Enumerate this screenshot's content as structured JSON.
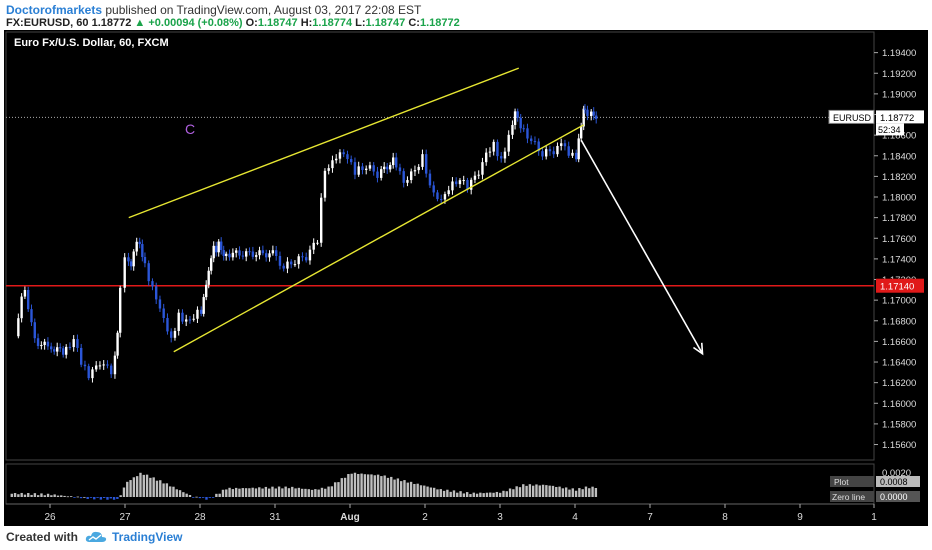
{
  "header": {
    "author": "Doctorofmarkets",
    "published": "published on TradingView.com, August 03, 2017 22:08 EST",
    "symbol": "FX:EURUSD, 60",
    "last": "1.18772",
    "change_arrow": "▲",
    "change": "+0.00094 (+0.08%)",
    "o_label": "O:",
    "o": "1.18747",
    "h_label": "H:",
    "h": "1.18774",
    "l_label": "L:",
    "l": "1.18747",
    "c_label": "C:",
    "c": "1.18772"
  },
  "footer": {
    "created_with": "Created with",
    "brand": "TradingView",
    "logo_icon": "tradingview-cloud-icon"
  },
  "chart_data": {
    "type": "candlestick",
    "title": "Euro Fx/U.S. Dollar, 60, FXCM",
    "y_range": [
      1.1545,
      1.196
    ],
    "y_ticks": [
      "1.19400",
      "1.19200",
      "1.19000",
      "1.18800",
      "1.18600",
      "1.18400",
      "1.18200",
      "1.18000",
      "1.17800",
      "1.17600",
      "1.17400",
      "1.17200",
      "1.17000",
      "1.16800",
      "1.16600",
      "1.16400",
      "1.16200",
      "1.16000",
      "1.15800",
      "1.15600"
    ],
    "x_tick_labels": [
      "26",
      "27",
      "28",
      "31",
      "Aug",
      "2",
      "3",
      "4",
      "7",
      "8",
      "9",
      "1"
    ],
    "price_label": {
      "symbol": "EURUSD",
      "value": "1.18772",
      "countdown": "52:34"
    },
    "horizontal_line": {
      "value": 1.1714,
      "label": "1.17140",
      "color": "#e01919"
    },
    "wave_label": "C",
    "up_color": "#ffffff",
    "down_color": "#2b56d8",
    "channel_color": "#e6e632",
    "arrow_color": "#ffffff",
    "channel": {
      "upper": {
        "start": {
          "x": 27.05,
          "y": 1.178
        },
        "end": {
          "x": 3.25,
          "y": 1.1925
        }
      },
      "lower": {
        "start": {
          "x": 27.65,
          "y": 1.165
        },
        "end": {
          "x": 4.35,
          "y": 1.187
        }
      }
    },
    "arrow": {
      "start": {
        "x": 4.25,
        "y": 1.1855
      },
      "end": {
        "x": 7.7,
        "y": 1.1648
      }
    },
    "price_path": [
      [
        25.5,
        1.1665
      ],
      [
        25.6,
        1.17
      ],
      [
        25.65,
        1.1712
      ],
      [
        25.8,
        1.166
      ],
      [
        26.0,
        1.1655
      ],
      [
        26.2,
        1.165
      ],
      [
        26.35,
        1.1662
      ],
      [
        26.45,
        1.164
      ],
      [
        26.55,
        1.1625
      ],
      [
        26.7,
        1.164
      ],
      [
        26.85,
        1.163
      ],
      [
        26.92,
        1.1665
      ],
      [
        26.98,
        1.1715
      ],
      [
        27.03,
        1.1745
      ],
      [
        27.1,
        1.1735
      ],
      [
        27.18,
        1.176
      ],
      [
        27.25,
        1.1745
      ],
      [
        27.35,
        1.172
      ],
      [
        27.45,
        1.17
      ],
      [
        27.55,
        1.168
      ],
      [
        27.65,
        1.166
      ],
      [
        27.75,
        1.1685
      ],
      [
        27.9,
        1.1678
      ],
      [
        28.0,
        1.1692
      ],
      [
        28.1,
        1.1688
      ],
      [
        28.2,
        1.1702
      ],
      [
        28.3,
        1.1712
      ],
      [
        28.4,
        1.1725
      ],
      [
        28.5,
        1.1738
      ],
      [
        28.6,
        1.1752
      ],
      [
        28.7,
        1.1748
      ],
      [
        28.8,
        1.176
      ],
      [
        28.9,
        1.1752
      ],
      [
        29.0,
        1.1745
      ],
      [
        31.0,
        1.1745
      ],
      [
        31.15,
        1.1732
      ],
      [
        31.3,
        1.1738
      ],
      [
        31.45,
        1.1742
      ],
      [
        31.6,
        1.1758
      ],
      [
        31.65,
        1.18
      ],
      [
        31.7,
        1.1828
      ],
      [
        31.8,
        1.1835
      ],
      [
        31.9,
        1.1845
      ],
      [
        32.0,
        1.184
      ],
      [
        32.1,
        1.1825
      ],
      [
        32.25,
        1.183
      ],
      [
        32.4,
        1.1822
      ],
      [
        32.6,
        1.1835
      ],
      [
        32.75,
        1.1815
      ],
      [
        32.9,
        1.1825
      ],
      [
        33.0,
        1.184
      ],
      [
        33.1,
        1.1812
      ],
      [
        33.25,
        1.1795
      ],
      [
        33.35,
        1.181
      ],
      [
        33.5,
        1.1818
      ],
      [
        33.6,
        1.1808
      ],
      [
        33.75,
        1.1825
      ],
      [
        33.85,
        1.184
      ],
      [
        33.95,
        1.185
      ],
      [
        34.05,
        1.1835
      ],
      [
        34.15,
        1.186
      ],
      [
        34.22,
        1.1885
      ],
      [
        34.3,
        1.187
      ],
      [
        34.45,
        1.1855
      ],
      [
        34.6,
        1.1842
      ],
      [
        34.75,
        1.1845
      ],
      [
        34.9,
        1.1852
      ],
      [
        34.95,
        1.184
      ],
      [
        35.0,
        1.1845
      ],
      [
        35.1,
        1.184
      ],
      [
        35.2,
        1.186
      ],
      [
        35.3,
        1.187
      ],
      [
        35.35,
        1.1885
      ],
      [
        35.45,
        1.1882
      ],
      [
        35.6,
        1.1875
      ],
      [
        35.7,
        1.188
      ],
      [
        35.8,
        1.1878
      ],
      [
        35.85,
        1.1877
      ]
    ],
    "oscillator": {
      "ticks": [
        "0.0020",
        "0.0008",
        "0.0000"
      ],
      "plot_label": "Plot",
      "plot_value": "0.0008",
      "zero_label": "Zero line",
      "zero_value": "0.0000"
    }
  }
}
